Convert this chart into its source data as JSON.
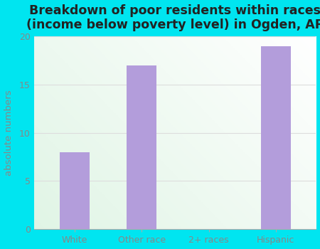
{
  "categories": [
    "White",
    "Other race",
    "2+ races",
    "Hispanic"
  ],
  "values": [
    8,
    17,
    0,
    19
  ],
  "bar_color": "#b39ddb",
  "title_line1": "Breakdown of poor residents within races",
  "title_line2": "(income below poverty level) in Ogden, AR",
  "ylabel": "absolute numbers",
  "ylim": [
    0,
    20
  ],
  "yticks": [
    0,
    5,
    10,
    15,
    20
  ],
  "background_outer": "#00e5f0",
  "plot_bg_color1": "#f0faf0",
  "plot_bg_color2": "#f8f8f8",
  "title_fontsize": 12.5,
  "label_fontsize": 9.5,
  "tick_fontsize": 9,
  "bar_width": 0.45,
  "tick_color": "#888888",
  "title_color": "#222222",
  "ylabel_color": "#888888",
  "gridline_color": "#dddddd"
}
